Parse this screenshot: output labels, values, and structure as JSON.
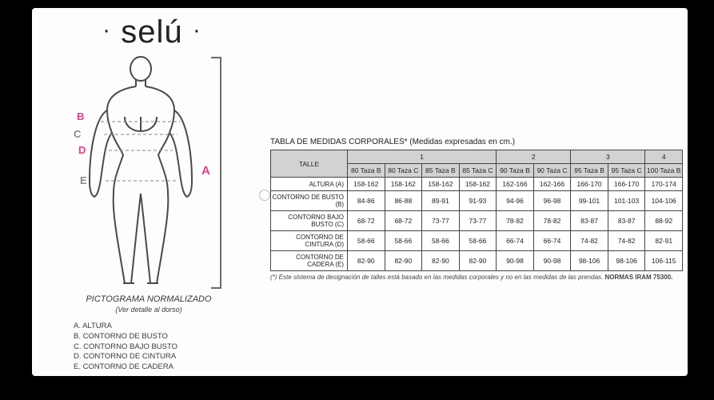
{
  "brand": "selú",
  "figure": {
    "labels": {
      "A": "A",
      "B": "B",
      "C": "C",
      "D": "D",
      "E": "E"
    },
    "label_color_pink": "#e83a8c",
    "label_color_gray": "#888888",
    "line_color": "#6a6a6a",
    "caption_title": "PICTOGRAMA NORMALIZADO",
    "caption_sub": "(Ver detalle al dorso)"
  },
  "legend": [
    "A. ALTURA",
    "B. CONTORNO DE BUSTO",
    "C. CONTORNO BAJO BUSTO",
    "D. CONTORNO DE CINTURA",
    "E. CONTORNO DE CADERA"
  ],
  "table": {
    "title": "TABLA DE MEDIDAS CORPORALES* (Medidas expresadas en cm.)",
    "corner": "TALLE",
    "groups": [
      "1",
      "2",
      "3",
      "4"
    ],
    "group_spans": [
      4,
      2,
      2,
      1
    ],
    "subcols": [
      "80 Taza B",
      "80 Taza C",
      "85 Taza B",
      "85 Taza C",
      "90 Taza B",
      "90 Taza C",
      "95 Taza B",
      "95 Taza C",
      "100 Taza B"
    ],
    "rows": [
      {
        "label": "ALTURA (A)",
        "cells": [
          "158-162",
          "158-162",
          "158-162",
          "158-162",
          "162-166",
          "162-166",
          "166-170",
          "166-170",
          "170-174"
        ]
      },
      {
        "label": "CONTORNO DE BUSTO (B)",
        "cells": [
          "84-86",
          "86-88",
          "89-91",
          "91-93",
          "94-96",
          "96-98",
          "99-101",
          "101-103",
          "104-106"
        ]
      },
      {
        "label": "CONTORNO BAJO BUSTO (C)",
        "cells": [
          "68-72",
          "68-72",
          "73-77",
          "73-77",
          "78-82",
          "78-82",
          "83-87",
          "83-87",
          "88-92"
        ]
      },
      {
        "label": "CONTORNO DE CINTURA (D)",
        "cells": [
          "58-66",
          "58-66",
          "58-66",
          "58-66",
          "66-74",
          "66-74",
          "74-82",
          "74-82",
          "82-91"
        ]
      },
      {
        "label": "CONTORNO DE CADERA (E)",
        "cells": [
          "82-90",
          "82-90",
          "82-90",
          "82-90",
          "90-98",
          "90-98",
          "98-106",
          "98-106",
          "106-115"
        ]
      }
    ],
    "footnote_prefix": "(*) Este sistema de designación de talles está basado en las medidas corporales y no en las medidas de las prendas. ",
    "footnote_bold": "NORMAS IRAM 75300."
  }
}
